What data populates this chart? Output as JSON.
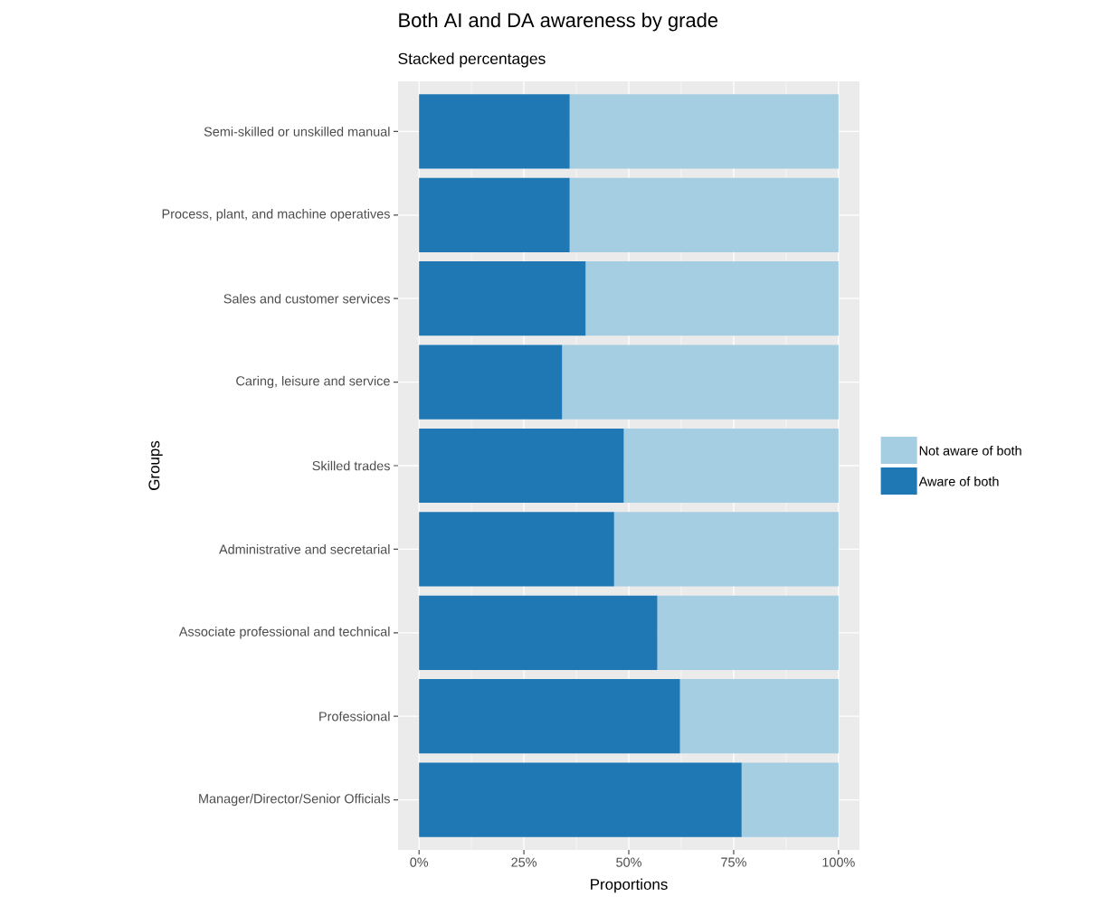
{
  "chart_data": {
    "type": "bar",
    "orientation": "horizontal",
    "stacked": true,
    "title": "Both AI and DA awareness by grade",
    "subtitle": "Stacked percentages",
    "xlabel": "Proportions",
    "ylabel": "Groups",
    "categories": [
      "Semi-skilled or unskilled manual",
      "Process, plant, and machine operatives",
      "Sales and customer services",
      "Caring, leisure and service",
      "Skilled trades",
      "Administrative and secretarial",
      "Associate professional and technical",
      "Professional",
      "Manager/Director/Senior Officials"
    ],
    "series": [
      {
        "name": "Aware of both",
        "color": "#1f78b4",
        "values": [
          35.9,
          35.9,
          39.7,
          34.1,
          48.8,
          46.5,
          56.8,
          62.2,
          76.9
        ]
      },
      {
        "name": "Not aware of both",
        "color": "#a6cee3",
        "values": [
          64.1,
          64.1,
          60.3,
          65.9,
          51.2,
          53.5,
          43.2,
          37.8,
          23.1
        ]
      }
    ],
    "xlim": [
      -5,
      105
    ],
    "xticks": [
      {
        "value": 0,
        "label": "0%"
      },
      {
        "value": 25,
        "label": "25%"
      },
      {
        "value": 50,
        "label": "50%"
      },
      {
        "value": 75,
        "label": "75%"
      },
      {
        "value": 100,
        "label": "100%"
      }
    ],
    "grid": true,
    "legend": "right"
  }
}
